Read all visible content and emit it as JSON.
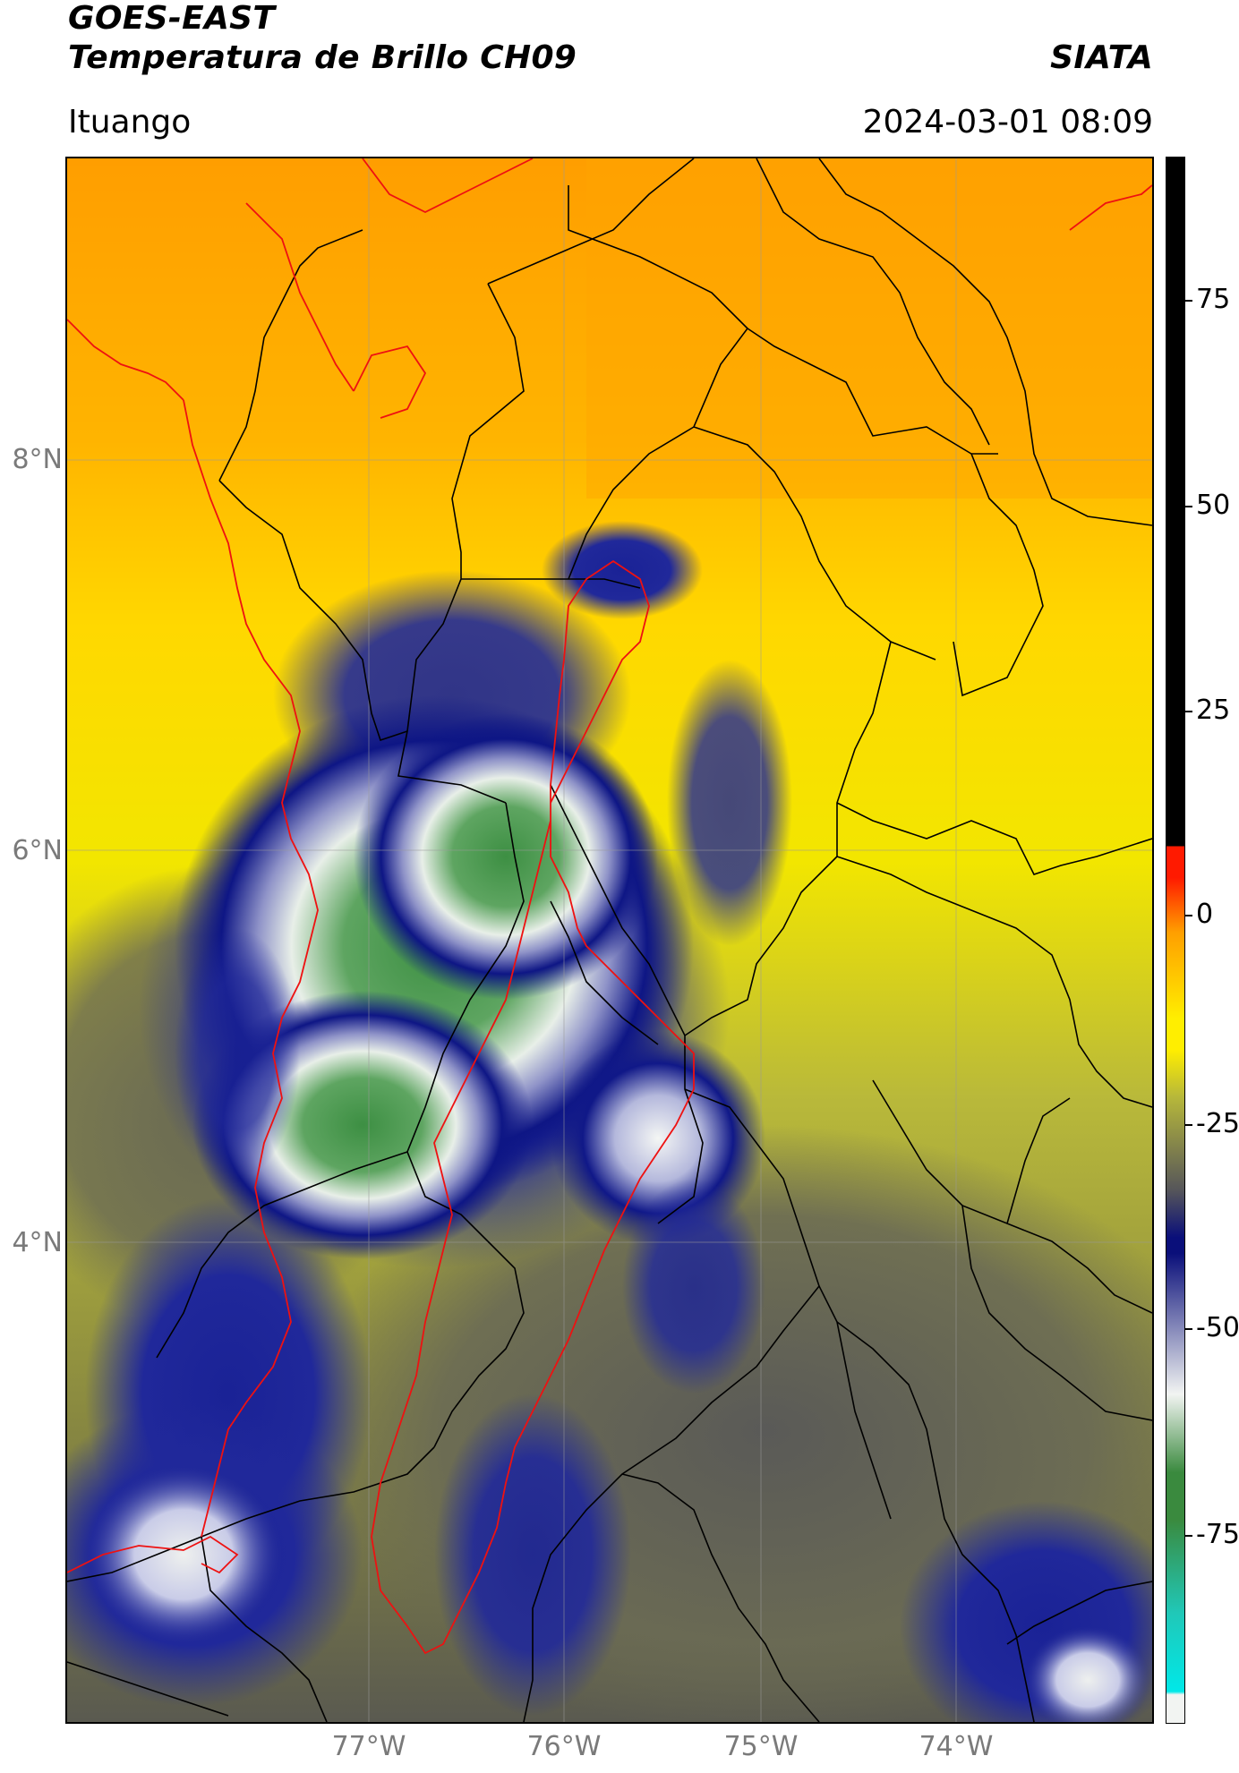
{
  "header": {
    "satellite": "GOES-EAST",
    "product": "Temperatura de Brillo CH09",
    "organization": "SIATA",
    "region": "Ituango",
    "datetime": "2024-03-01 08:09"
  },
  "map": {
    "lat_ticks": [
      "8°N",
      "6°N",
      "4°N"
    ],
    "lon_ticks": [
      "77°W",
      "76°W",
      "75°W",
      "74°W"
    ]
  },
  "colorbar": {
    "tick_labels": [
      "75",
      "50",
      "25",
      "0",
      "-25",
      "-50",
      "-75"
    ],
    "colors": {
      "black": "#000000",
      "red": "#ff1a00",
      "orange": "#ff9f00",
      "yellow": "#ffee00",
      "olive": "#b7b83a",
      "gray": "#55555a",
      "navy": "#0a0f7a",
      "white": "#f2f4f2",
      "green": "#3a8a3e",
      "teal": "#20c8b8",
      "cyan": "#00e8e8"
    }
  }
}
